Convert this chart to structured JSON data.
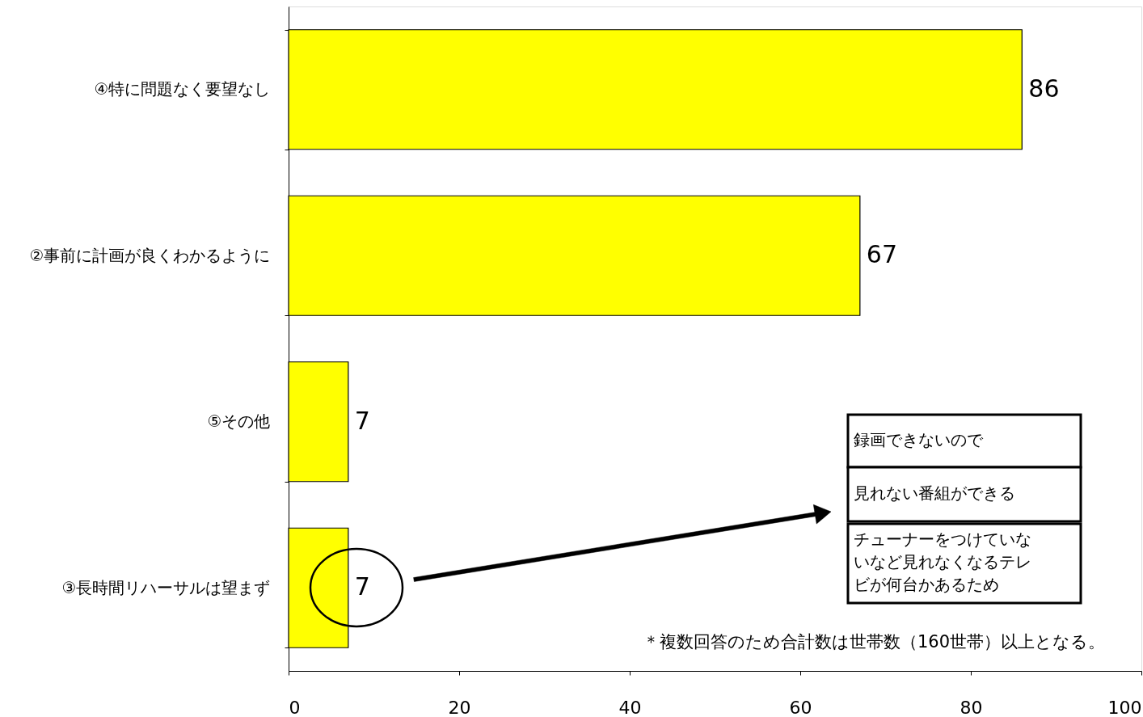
{
  "chart_data": {
    "type": "bar",
    "orientation": "horizontal",
    "categories": [
      "④特に問題なく要望なし",
      "②事前に計画が良くわかるように",
      "⑤その他",
      "③長時間リハーサルは望まず"
    ],
    "values": [
      86,
      67,
      7,
      7
    ],
    "color": "#ffff00",
    "xlim": [
      0,
      100
    ],
    "xticks": [
      0,
      20,
      40,
      60,
      80,
      100
    ],
    "data_labels": true,
    "grid": false,
    "annotations": [
      "録画できないので",
      "見れない番組ができる",
      "チューナーをつけていないなど見れなくなるテレビが何台かあるため",
      "＊複数回答のため合計数は世帯数（160世帯）以上となる。"
    ]
  }
}
